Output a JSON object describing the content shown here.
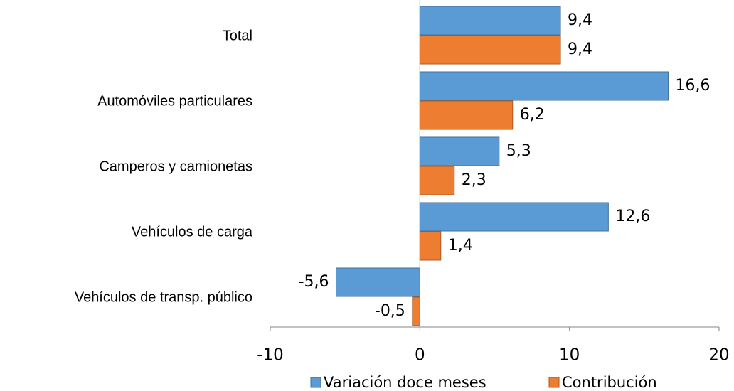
{
  "chart_data": {
    "type": "bar",
    "orientation": "horizontal",
    "categories": [
      "Total",
      "Automóviles particulares",
      "Camperos y camionetas",
      "Vehículos de carga",
      "Vehículos de transp. público"
    ],
    "series": [
      {
        "name": "Variación doce meses",
        "color": "#5b9bd5",
        "values": [
          9.4,
          16.6,
          5.3,
          12.6,
          -5.6
        ],
        "value_labels": [
          "9,4",
          "16,6",
          "5,3",
          "12,6",
          "-5,6"
        ]
      },
      {
        "name": "Contribución",
        "color": "#ed7d31",
        "values": [
          9.4,
          6.2,
          2.3,
          1.4,
          -0.5
        ],
        "value_labels": [
          "9,4",
          "6,2",
          "2,3",
          "1,4",
          "-0,5"
        ]
      }
    ],
    "xlim": [
      -10,
      20
    ],
    "xticks": [
      -10,
      0,
      10,
      20
    ],
    "legend": "bottom"
  }
}
